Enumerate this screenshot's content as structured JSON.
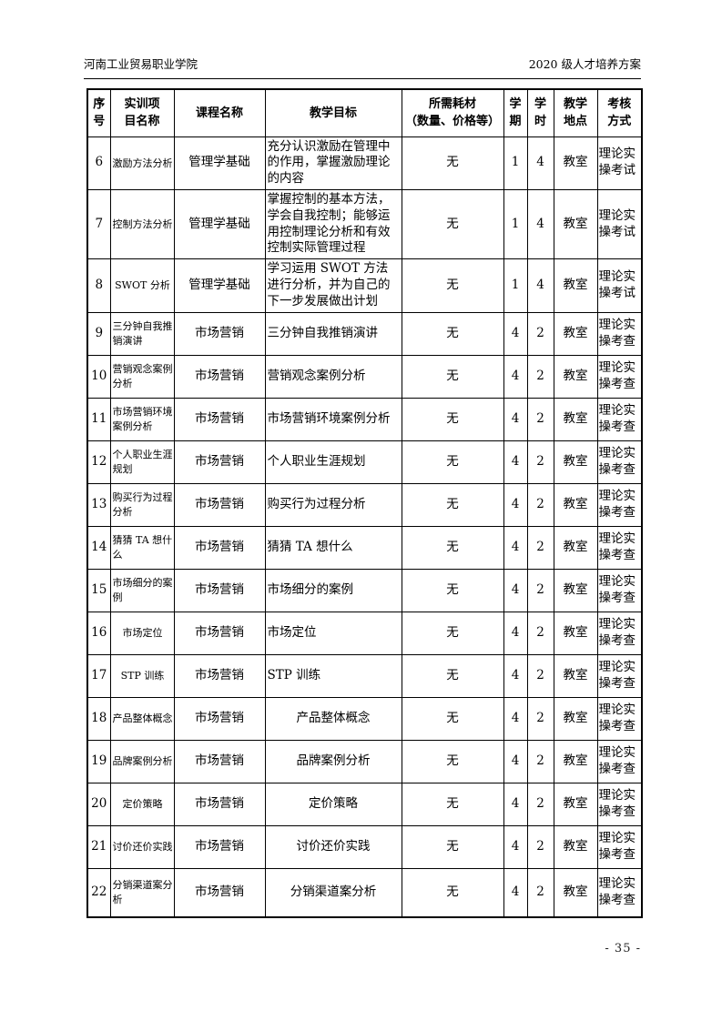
{
  "colors": {
    "background": "#ffffff",
    "border": "#000000",
    "text": "#000000"
  },
  "page_header": {
    "left": "河南工业贸易职业学院",
    "right": "2020 级人才培养方案"
  },
  "table": {
    "columns": [
      {
        "key": "no",
        "label": "序\n号"
      },
      {
        "key": "project",
        "label": "实训项\n目名称"
      },
      {
        "key": "course",
        "label": "课程名称"
      },
      {
        "key": "objective",
        "label": "教学目标"
      },
      {
        "key": "materials",
        "label": "所需耗材\n（数量、价格等）"
      },
      {
        "key": "semester",
        "label": "学\n期"
      },
      {
        "key": "hours",
        "label": "学\n时"
      },
      {
        "key": "location",
        "label": "教学\n地点"
      },
      {
        "key": "assessment",
        "label": "考核\n方式"
      }
    ],
    "rows": [
      {
        "no": "6",
        "project": "激励方法分析",
        "course": "管理学基础",
        "objective": "充分认识激励在管理中的作用，掌握激励理论的内容",
        "materials": "无",
        "semester": "1",
        "hours": "4",
        "location": "教室",
        "assessment": "理论实操考试"
      },
      {
        "no": "7",
        "project": "控制方法分析",
        "course": "管理学基础",
        "objective": "掌握控制的基本方法，学会自我控制；能够运用控制理论分析和有效控制实际管理过程",
        "materials": "无",
        "semester": "1",
        "hours": "4",
        "location": "教室",
        "assessment": "理论实操考试"
      },
      {
        "no": "8",
        "project": "SWOT 分析",
        "project_align": "center",
        "course": "管理学基础",
        "objective": "学习运用 SWOT 方法进行分析，并为自己的下一步发展做出计划",
        "materials": "无",
        "semester": "1",
        "hours": "4",
        "location": "教室",
        "assessment": "理论实操考试"
      },
      {
        "no": "9",
        "project": "三分钟自我推销演讲",
        "course": "市场营销",
        "objective": "三分钟自我推销演讲",
        "materials": "无",
        "semester": "4",
        "hours": "2",
        "location": "教室",
        "assessment": "理论实操考查"
      },
      {
        "no": "10",
        "project": "营销观念案例分析",
        "course": "市场营销",
        "objective": "营销观念案例分析",
        "materials": "无",
        "semester": "4",
        "hours": "2",
        "location": "教室",
        "assessment": "理论实操考查"
      },
      {
        "no": "11",
        "project": "市场营销环境案例分析",
        "course": "市场营销",
        "objective": "市场营销环境案例分析",
        "materials": "无",
        "semester": "4",
        "hours": "2",
        "location": "教室",
        "assessment": "理论实操考查"
      },
      {
        "no": "12",
        "project": "个人职业生涯规划",
        "course": "市场营销",
        "objective": "个人职业生涯规划",
        "materials": "无",
        "semester": "4",
        "hours": "2",
        "location": "教室",
        "assessment": "理论实操考查"
      },
      {
        "no": "13",
        "project": "购买行为过程分析",
        "course": "市场营销",
        "objective": "购买行为过程分析",
        "materials": "无",
        "semester": "4",
        "hours": "2",
        "location": "教室",
        "assessment": "理论实操考查"
      },
      {
        "no": "14",
        "project": "猜猜 TA 想什么",
        "course": "市场营销",
        "objective": "猜猜 TA 想什么",
        "materials": "无",
        "semester": "4",
        "hours": "2",
        "location": "教室",
        "assessment": "理论实操考查"
      },
      {
        "no": "15",
        "project": "市场细分的案例",
        "course": "市场营销",
        "objective": "市场细分的案例",
        "materials": "无",
        "semester": "4",
        "hours": "2",
        "location": "教室",
        "assessment": "理论实操考查"
      },
      {
        "no": "16",
        "project": "市场定位",
        "project_align": "center",
        "course": "市场营销",
        "objective": "市场定位",
        "materials": "无",
        "semester": "4",
        "hours": "2",
        "location": "教室",
        "assessment": "理论实操考查"
      },
      {
        "no": "17",
        "project": "STP 训练",
        "project_align": "center",
        "course": "市场营销",
        "objective": "STP 训练",
        "materials": "无",
        "semester": "4",
        "hours": "2",
        "location": "教室",
        "assessment": "理论实操考查"
      },
      {
        "no": "18",
        "project": "产品整体概念",
        "course": "市场营销",
        "objective": "产品整体概念",
        "objective_align": "center",
        "materials": "无",
        "semester": "4",
        "hours": "2",
        "location": "教室",
        "assessment": "理论实操考查"
      },
      {
        "no": "19",
        "project": "品牌案例分析",
        "course": "市场营销",
        "objective": "品牌案例分析",
        "objective_align": "center",
        "materials": "无",
        "semester": "4",
        "hours": "2",
        "location": "教室",
        "assessment": "理论实操考查"
      },
      {
        "no": "20",
        "project": "定价策略",
        "project_align": "center",
        "course": "市场营销",
        "objective": "定价策略",
        "objective_align": "center",
        "materials": "无",
        "semester": "4",
        "hours": "2",
        "location": "教室",
        "assessment": "理论实操考查"
      },
      {
        "no": "21",
        "project": "讨价还价实践",
        "course": "市场营销",
        "objective": "讨价还价实践",
        "objective_align": "center",
        "materials": "无",
        "semester": "4",
        "hours": "2",
        "location": "教室",
        "assessment": "理论实操考查"
      },
      {
        "no": "22",
        "project": "分销渠道案分析",
        "course": "市场营销",
        "objective": "分销渠道案分析",
        "objective_align": "center",
        "materials": "无",
        "semester": "4",
        "hours": "2",
        "location": "教室",
        "assessment": "理论实操考查"
      }
    ]
  },
  "footer": {
    "page_number": "- 35 -"
  }
}
